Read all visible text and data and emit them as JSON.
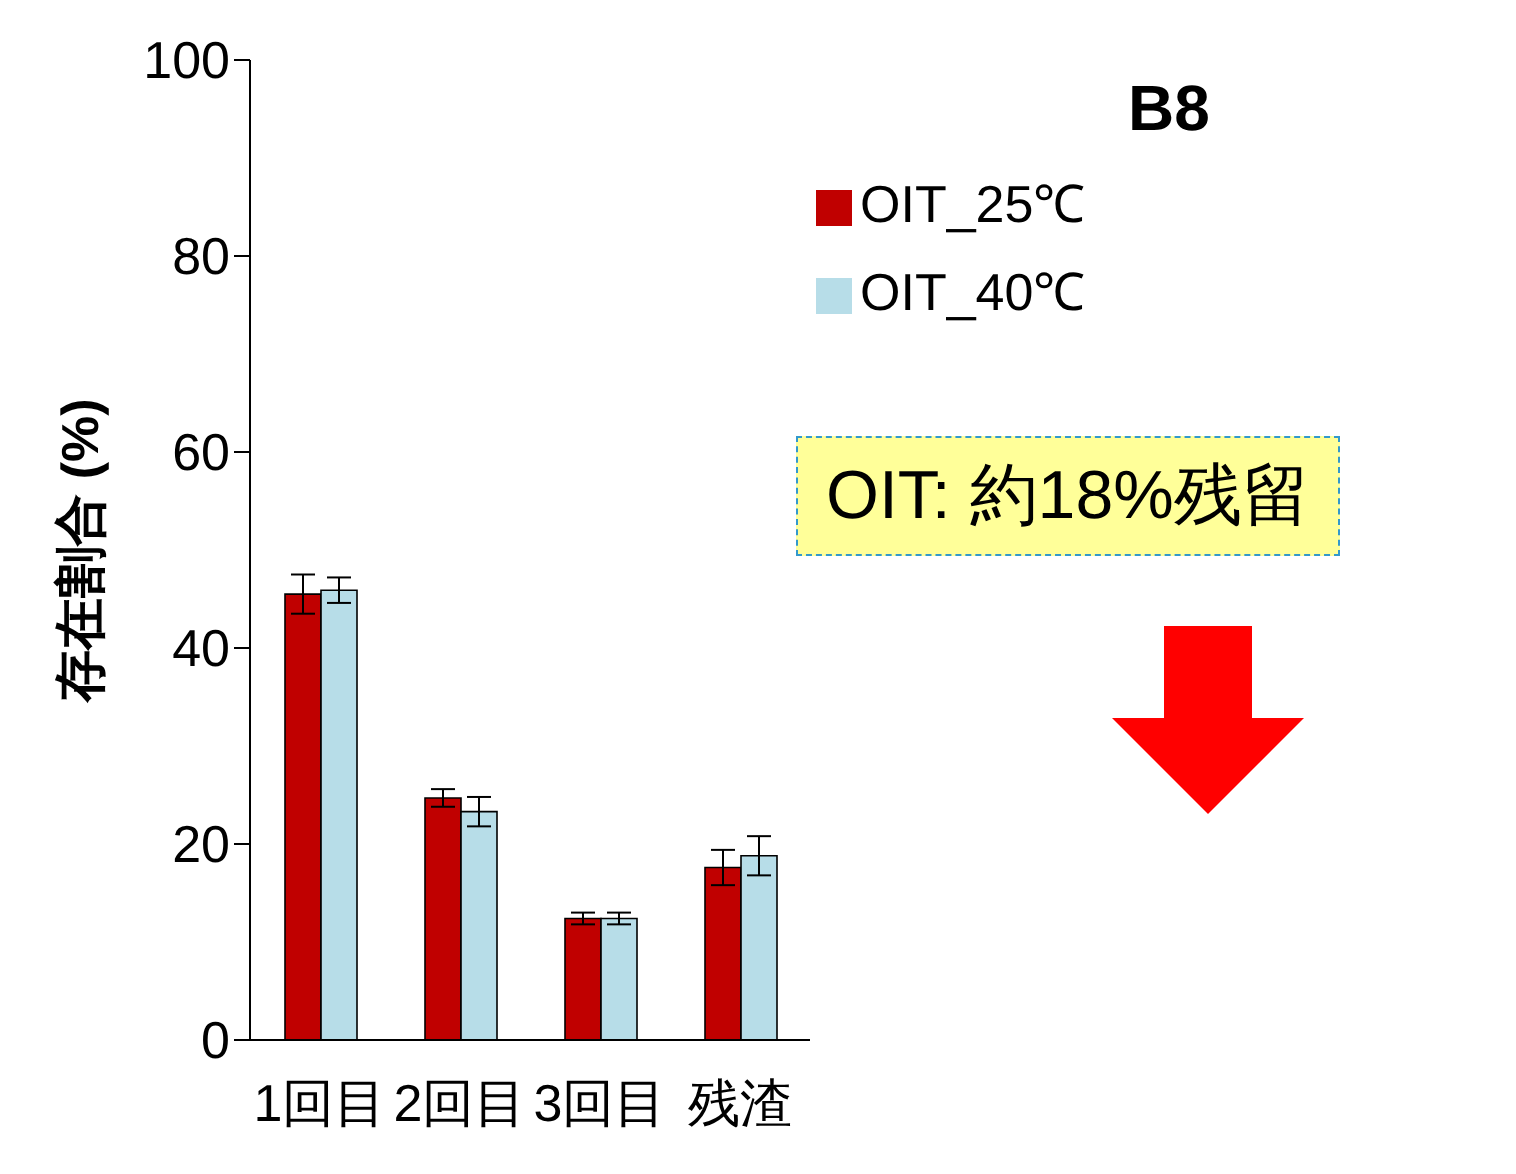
{
  "chart_data": {
    "type": "bar",
    "title": "B8",
    "ylabel": "存在割合 (%)",
    "categories": [
      "1回目",
      "2回目",
      "3回目",
      "残渣"
    ],
    "series": [
      {
        "name": "OIT_25℃",
        "color": "#c00000",
        "values": [
          45.5,
          24.7,
          12.4,
          17.6
        ],
        "errors": [
          2,
          0.9,
          0.6,
          1.8
        ]
      },
      {
        "name": "OIT_40℃",
        "color": "#b7dde8",
        "values": [
          45.9,
          23.3,
          12.4,
          18.8
        ],
        "errors": [
          1.3,
          1.5,
          0.6,
          2
        ]
      }
    ],
    "ylim": [
      0,
      100
    ],
    "yticks": [
      0,
      20,
      40,
      60,
      80,
      100
    ],
    "grid": false,
    "legend": "top right",
    "annotations": [
      "OIT: 約18%残留"
    ]
  }
}
